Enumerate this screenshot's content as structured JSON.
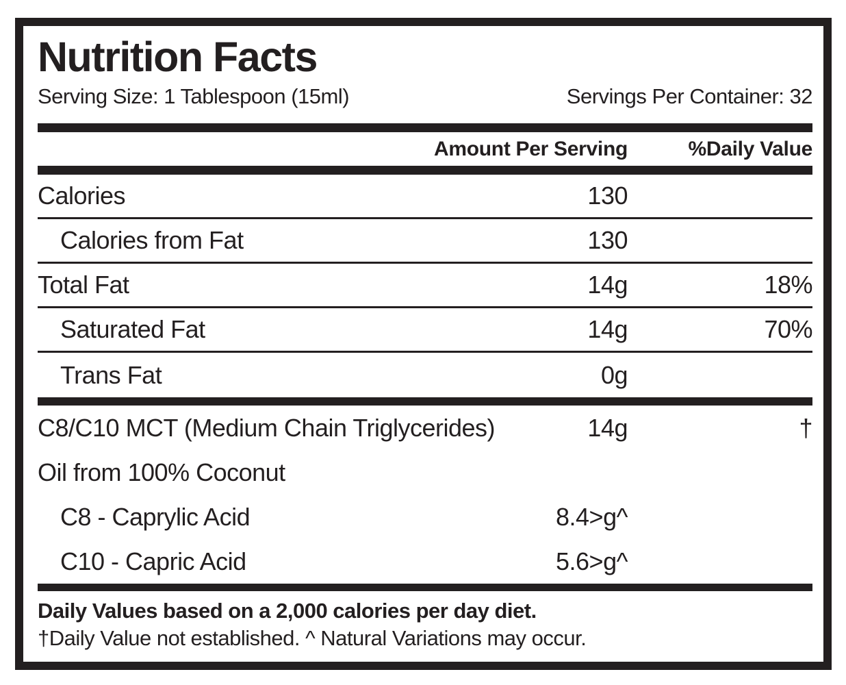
{
  "label": {
    "title": "Nutrition Facts",
    "serving": {
      "size": "Serving Size: 1 Tablespoon (15ml)",
      "per_container": "Servings Per Container: 32"
    },
    "columns": {
      "amount": "Amount Per Serving",
      "daily_value": "%Daily Value"
    },
    "rows": [
      {
        "name": "Calories",
        "amount": "130",
        "dv": ""
      },
      {
        "name": "Calories from Fat",
        "amount": "130",
        "dv": ""
      },
      {
        "name": "Total Fat",
        "amount": "14g",
        "dv": "18%"
      },
      {
        "name": "Saturated Fat",
        "amount": "14g",
        "dv": "70%"
      },
      {
        "name": "Trans Fat",
        "amount": "0g",
        "dv": ""
      },
      {
        "name": "C8/C10 MCT (Medium Chain Triglycerides)",
        "amount": "14g",
        "dv": "†"
      },
      {
        "name": "Oil from 100% Coconut",
        "amount": "",
        "dv": ""
      },
      {
        "name": "C8 - Caprylic Acid",
        "amount": "8.4>g^",
        "dv": ""
      },
      {
        "name": "C10 - Capric Acid",
        "amount": "5.6>g^",
        "dv": ""
      }
    ],
    "footnotes": {
      "bold": "Daily Values based on a 2,000 calories per day diet.",
      "regular": "†Daily Value not established. ^ Natural Variations may occur."
    },
    "colors": {
      "ink": "#231f20",
      "background": "#ffffff"
    }
  }
}
